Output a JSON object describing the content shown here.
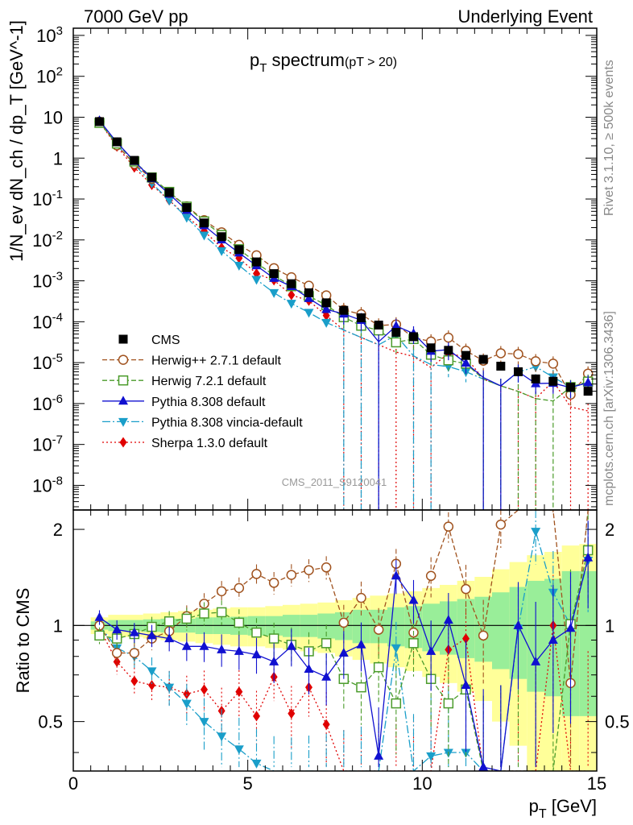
{
  "header": {
    "left": "7000 GeV pp",
    "right": "Underlying Event"
  },
  "side_labels": {
    "rivet": "Rivet 3.1.10, ≥ 500k events",
    "mcplots": "mcplots.cern.ch [arXiv:1306.3436]"
  },
  "chart_data": {
    "type": "line",
    "title_main": "p",
    "title_sub": "T",
    "title_rest": " spectrum",
    "title_cut": "(pT > 20)",
    "watermark": "CMS_2011_S9120041",
    "xlabel_main": "p",
    "xlabel_sub": "T",
    "xlabel_unit": " [GeV]",
    "ylabel": "1/N_ev dN_ch / dp_T [GeV^-1]",
    "ratio_ylabel": "Ratio to CMS",
    "xlim": [
      0,
      15
    ],
    "ylim_log": [
      2.5e-09,
      1500
    ],
    "ratio_ylim": [
      0.35,
      2.3
    ],
    "x_ticks": [
      "0",
      "5",
      "10",
      "15"
    ],
    "y_ticks": [
      "10^-8",
      "10^-7",
      "10^-6",
      "10^-5",
      "10^-4",
      "10^-3",
      "10^-2",
      "10^-1",
      "1",
      "10",
      "10^2",
      "10^3"
    ],
    "ratio_ticks": [
      "0.5",
      "1",
      "2"
    ],
    "x": [
      0.75,
      1.25,
      1.75,
      2.25,
      2.75,
      3.25,
      3.75,
      4.25,
      4.75,
      5.25,
      5.75,
      6.25,
      6.75,
      7.25,
      7.75,
      8.25,
      8.75,
      9.25,
      9.75,
      10.25,
      10.75,
      11.25,
      11.75,
      12.25,
      12.75,
      13.25,
      13.75,
      14.25,
      14.75
    ],
    "data": {
      "name": "CMS",
      "color": "#000000",
      "values": [
        7.8,
        2.5,
        0.88,
        0.34,
        0.145,
        0.062,
        0.026,
        0.012,
        0.0058,
        0.0029,
        0.0015,
        0.00085,
        0.00051,
        0.00029,
        0.00019,
        0.000125,
        8.3e-05,
        5.5e-05,
        4.3e-05,
        2.3e-05,
        2e-05,
        1.5e-05,
        1.2e-05,
        8.2e-06,
        6e-06,
        4e-06,
        3.5e-06,
        2.5e-06,
        2e-06
      ]
    },
    "series": [
      {
        "name": "Herwig++ 2.7.1 default",
        "color": "#a0521e",
        "marker": "open-circle",
        "dash": "6,3",
        "ratio": [
          1.0,
          0.82,
          0.82,
          0.91,
          0.96,
          1.07,
          1.17,
          1.28,
          1.31,
          1.45,
          1.36,
          1.44,
          1.49,
          1.52,
          1.02,
          1.22,
          0.97,
          1.56,
          0.95,
          1.43,
          2.04,
          1.3,
          0.93,
          2.07,
          2.7,
          2.7,
          2.7,
          0.66,
          2.7
        ]
      },
      {
        "name": "Herwig 7.2.1 default",
        "color": "#4a9b2a",
        "marker": "open-square",
        "dash": "6,3",
        "ratio": [
          0.93,
          0.91,
          0.94,
          0.99,
          1.03,
          1.05,
          1.09,
          1.1,
          1.02,
          0.95,
          0.91,
          0.87,
          0.83,
          0.88,
          0.68,
          0.64,
          0.74,
          0.57,
          0.88,
          0.68,
          0.57,
          0.63,
          0.33,
          0.33,
          0.33,
          0.33,
          0.33,
          1.01,
          1.72
        ]
      },
      {
        "name": "Pythia 8.308 default",
        "color": "#1010d0",
        "marker": "filled-triangle-up",
        "dash": "",
        "ratio": [
          1.06,
          0.97,
          0.95,
          0.93,
          0.91,
          0.86,
          0.86,
          0.84,
          0.83,
          0.81,
          0.77,
          0.86,
          0.73,
          0.69,
          0.82,
          0.87,
          0.39,
          1.43,
          1.2,
          0.83,
          1.04,
          0.65,
          0.36,
          0.33,
          1.0,
          0.77,
          0.9,
          0.98,
          1.63
        ]
      },
      {
        "name": "Pythia 8.308 vincia-default",
        "color": "#1a9ec9",
        "marker": "filled-triangle-down",
        "dash": "10,3,2,3",
        "ratio": [
          1.0,
          0.85,
          0.8,
          0.72,
          0.64,
          0.57,
          0.5,
          0.45,
          0.41,
          0.37,
          0.34,
          0.33,
          0.33,
          0.33,
          0.33,
          0.33,
          0.33,
          0.85,
          0.34,
          0.39,
          0.4,
          0.4,
          0.33,
          0.33,
          0.98,
          1.97,
          1.27,
          1.0,
          1.6
        ]
      },
      {
        "name": "Sherpa 1.3.0 default",
        "color": "#e00000",
        "marker": "filled-diamond",
        "dash": "2,3",
        "ratio": [
          0.98,
          0.77,
          0.67,
          0.65,
          0.64,
          0.61,
          0.63,
          0.54,
          0.62,
          0.52,
          0.69,
          0.53,
          0.64,
          0.49,
          0.33,
          0.33,
          0.33,
          0.33,
          0.33,
          0.33,
          0.84,
          0.91,
          0.33,
          0.33,
          0.33,
          0.33,
          1.0,
          0.33,
          0.33
        ]
      }
    ],
    "band_green_half": [
      0.03,
      0.04,
      0.04,
      0.045,
      0.05,
      0.05,
      0.06,
      0.06,
      0.065,
      0.07,
      0.07,
      0.08,
      0.08,
      0.09,
      0.1,
      0.12,
      0.12,
      0.14,
      0.15,
      0.17,
      0.19,
      0.21,
      0.23,
      0.27,
      0.32,
      0.38,
      0.4,
      0.48,
      0.48
    ],
    "band_yellow_half": [
      0.06,
      0.08,
      0.08,
      0.09,
      0.1,
      0.11,
      0.12,
      0.13,
      0.14,
      0.14,
      0.15,
      0.16,
      0.17,
      0.18,
      0.2,
      0.22,
      0.24,
      0.26,
      0.28,
      0.31,
      0.34,
      0.38,
      0.42,
      0.5,
      0.58,
      0.66,
      0.7,
      0.78,
      0.8
    ],
    "legend_position": "lower-left of main panel"
  }
}
